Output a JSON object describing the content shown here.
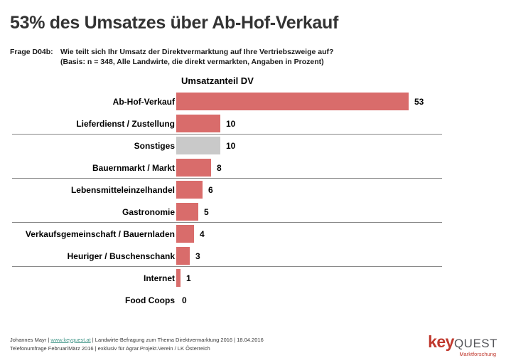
{
  "slide": {
    "title": "53% des Umsatzes über Ab-Hof-Verkauf",
    "question": {
      "label": "Frage D04b:",
      "line1": "Wie teilt sich Ihr Umsatz der Direktvermarktung auf Ihre Vertriebszweige auf?",
      "line2": "(Basis: n = 348, Alle Landwirte, die direkt vermarkten, Angaben in Prozent)"
    }
  },
  "chart_data": {
    "type": "bar",
    "orientation": "horizontal",
    "title": "Umsatzanteil DV",
    "categories": [
      "Ab-Hof-Verkauf",
      "Lieferdienst / Zustellung",
      "Sonstiges",
      "Bauernmarkt / Markt",
      "Lebensmitteleinzelhandel",
      "Gastronomie",
      "Verkaufsgemeinschaft / Bauernladen",
      "Heuriger / Buschenschank",
      "Internet",
      "Food Coops"
    ],
    "values": [
      53,
      10,
      10,
      8,
      6,
      5,
      4,
      3,
      1,
      0
    ],
    "unit": "percent",
    "xlim": [
      0,
      53
    ],
    "value_labels_shown": true,
    "grid": false,
    "legend": false,
    "bar_color_default": "#d96c6b",
    "bar_color_overrides": {
      "2": "#c9c9c9"
    },
    "group_dividers_after_index": [
      1,
      3,
      5,
      7
    ],
    "divider_color": "#888888"
  },
  "footer": {
    "line1_prefix": "Johannes Mayr | ",
    "link": "www.keyquest.at",
    "line1_suffix": " | Landwirte-Befragung zum Thema Direktvermarktung 2016 | 18.04.2016",
    "line2": "Telefonumfrage Februar/März 2016 | exklusiv für Agrar.Projekt.Verein / LK Österreich",
    "link_color": "#4a9b8e"
  },
  "logo": {
    "part1": "key",
    "part2": "QUEST",
    "subtitle": "Marktforschung",
    "color_red": "#c0392e",
    "color_gray": "#55565a"
  }
}
